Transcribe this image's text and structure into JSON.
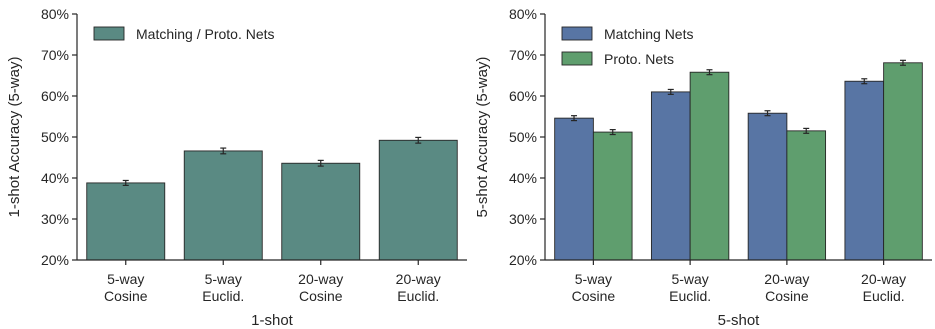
{
  "chart_data": [
    {
      "type": "bar",
      "categories": [
        [
          "5-way",
          "Cosine"
        ],
        [
          "5-way",
          "Euclid."
        ],
        [
          "20-way",
          "Cosine"
        ],
        [
          "20-way",
          "Euclid."
        ]
      ],
      "series": [
        {
          "name": "Matching / Proto. Nets",
          "values": [
            38.8,
            46.6,
            43.6,
            49.2
          ],
          "errors": [
            0.6,
            0.7,
            0.7,
            0.7
          ],
          "color": "#5a8a83"
        }
      ],
      "xlabel": "1-shot",
      "ylabel": "1-shot Accuracy (5-way)",
      "ylim": [
        20,
        80
      ],
      "yticks": [
        20,
        30,
        40,
        50,
        60,
        70,
        80
      ],
      "ytick_suffix": "%",
      "legend": "top-left",
      "grid": false
    },
    {
      "type": "bar",
      "categories": [
        [
          "5-way",
          "Cosine"
        ],
        [
          "5-way",
          "Euclid."
        ],
        [
          "20-way",
          "Cosine"
        ],
        [
          "20-way",
          "Euclid."
        ]
      ],
      "series": [
        {
          "name": "Matching Nets",
          "values": [
            54.6,
            61.0,
            55.8,
            63.6
          ],
          "errors": [
            0.6,
            0.6,
            0.6,
            0.6
          ],
          "color": "#5875a4"
        },
        {
          "name": "Proto. Nets",
          "values": [
            51.2,
            65.8,
            51.5,
            68.1
          ],
          "errors": [
            0.6,
            0.6,
            0.6,
            0.6
          ],
          "color": "#5f9e6e"
        }
      ],
      "xlabel": "5-shot",
      "ylabel": "5-shot Accuracy (5-way)",
      "ylim": [
        20,
        80
      ],
      "yticks": [
        20,
        30,
        40,
        50,
        60,
        70,
        80
      ],
      "ytick_suffix": "%",
      "legend": "top-left",
      "grid": false
    }
  ]
}
